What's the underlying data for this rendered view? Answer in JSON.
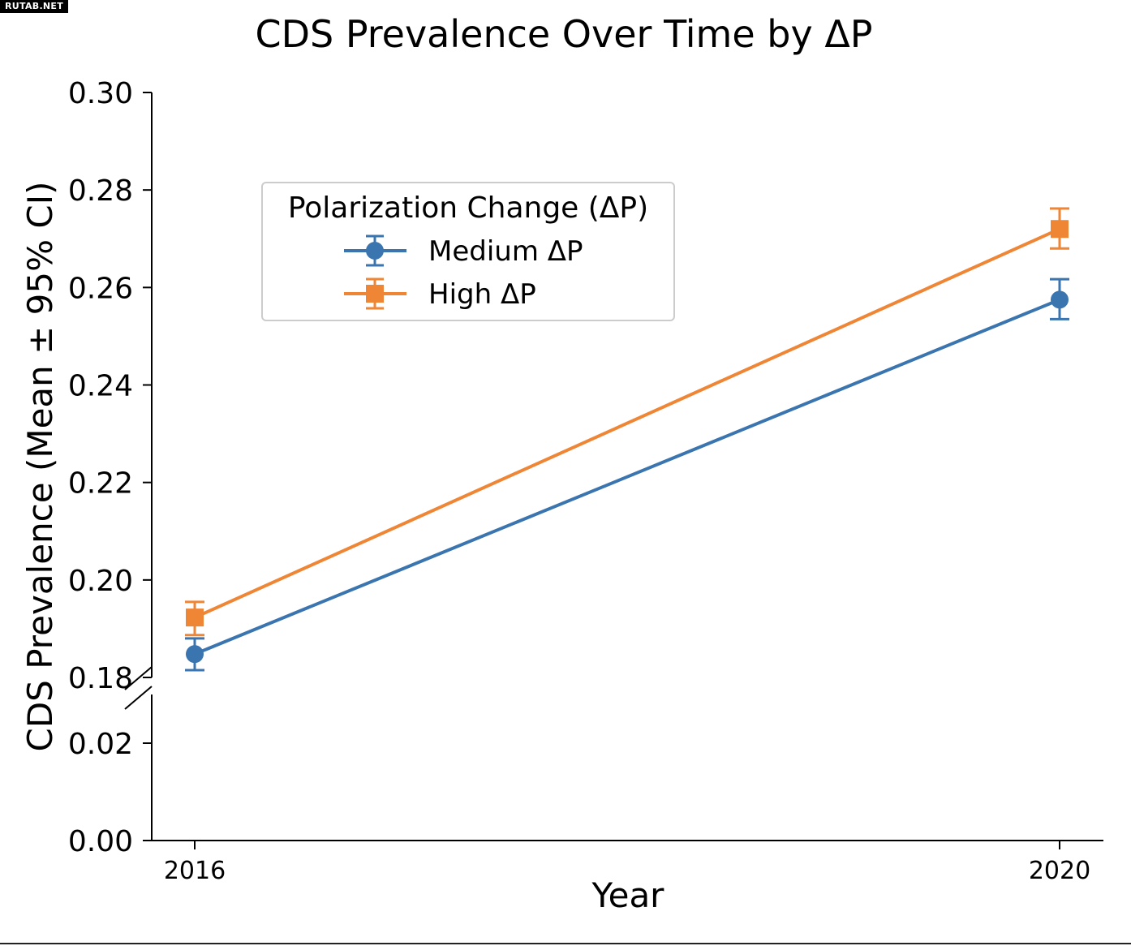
{
  "watermark": "RUTAB.NET",
  "chart_data": {
    "type": "line",
    "title": "CDS Prevalence Over Time by ΔP",
    "xlabel": "Year",
    "ylabel": "CDS Prevalence (Mean ± 95% CI)",
    "x": [
      "2016",
      "2020"
    ],
    "axis_break": true,
    "upper_ylim": [
      0.18,
      0.3
    ],
    "upper_ticks": [
      "0.30",
      "0.28",
      "0.26",
      "0.24",
      "0.22",
      "0.20",
      "0.18"
    ],
    "lower_ylim": [
      0.0,
      0.03
    ],
    "lower_ticks": [
      "0.02",
      "0.00"
    ],
    "legend": {
      "title": "Polarization Change (ΔP)",
      "placement": "upper-left"
    },
    "grid": false,
    "series": [
      {
        "name": "Medium ΔP",
        "color": "#3a75af",
        "marker": "circle",
        "values": [
          0.1848,
          0.2575
        ],
        "ci_low": [
          0.1815,
          0.2535
        ],
        "ci_high": [
          0.188,
          0.2617
        ]
      },
      {
        "name": "High ΔP",
        "color": "#ef8636",
        "marker": "square",
        "values": [
          0.1923,
          0.272
        ],
        "ci_low": [
          0.1887,
          0.268
        ],
        "ci_high": [
          0.1955,
          0.2762
        ]
      }
    ]
  }
}
